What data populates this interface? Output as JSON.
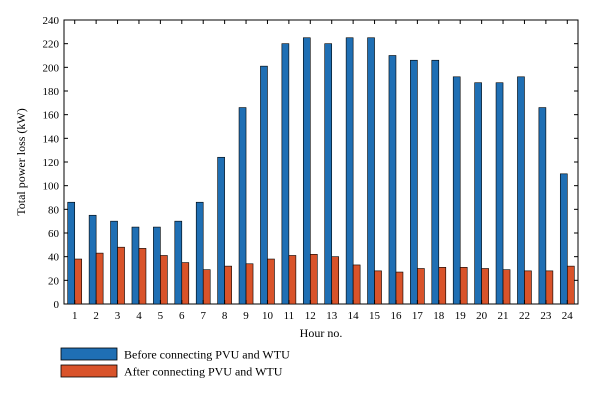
{
  "chart_data": {
    "type": "bar",
    "xlabel": "Hour no.",
    "ylabel": "Total power loss (kW)",
    "ylim": [
      0,
      240
    ],
    "yticks": [
      0,
      20,
      40,
      60,
      80,
      100,
      120,
      140,
      160,
      180,
      200,
      220,
      240
    ],
    "categories": [
      "1",
      "2",
      "3",
      "4",
      "5",
      "6",
      "7",
      "8",
      "9",
      "10",
      "11",
      "12",
      "13",
      "14",
      "15",
      "16",
      "17",
      "18",
      "19",
      "20",
      "21",
      "22",
      "23",
      "24"
    ],
    "grid": false,
    "legend_position": "bottom-left",
    "series": [
      {
        "name": "Before connecting PVU and WTU",
        "color": "#1f6fb4",
        "values": [
          86,
          75,
          70,
          65,
          65,
          70,
          86,
          124,
          166,
          201,
          220,
          225,
          220,
          225,
          225,
          210,
          206,
          206,
          192,
          187,
          187,
          192,
          166,
          110
        ]
      },
      {
        "name": "After connecting PVU and WTU",
        "color": "#d9532a",
        "values": [
          38,
          43,
          48,
          47,
          41,
          35,
          29,
          32,
          34,
          38,
          41,
          42,
          40,
          33,
          28,
          27,
          30,
          31,
          31,
          30,
          29,
          28,
          28,
          32
        ]
      }
    ]
  }
}
